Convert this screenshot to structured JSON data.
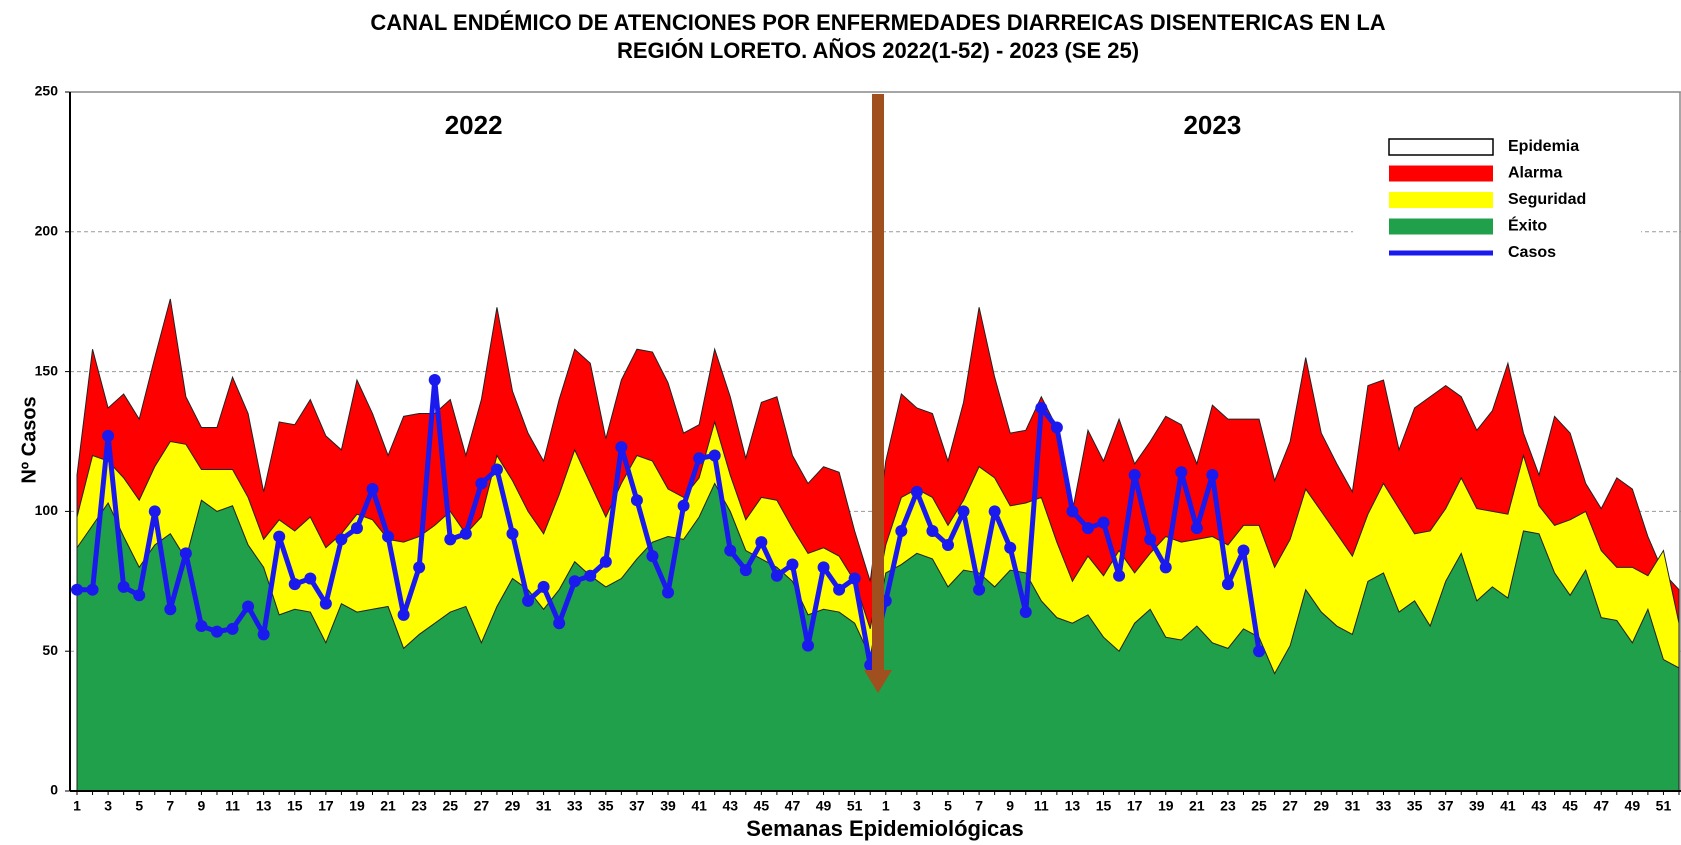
{
  "chart_data": {
    "type": "area",
    "title": [
      "CANAL ENDÉMICO DE ATENCIONES POR ENFERMEDADES DIARREICAS DISENTERICAS EN LA",
      "REGIÓN LORETO.  AÑOS 2022(1-52) - 2023 (SE 25)"
    ],
    "y_label": "Nº Casos",
    "x_label": "Semanas Epidemiológicas",
    "annotations": [
      "2022",
      "2023"
    ],
    "categories": [
      1,
      null,
      3,
      null,
      5,
      null,
      7,
      null,
      9,
      null,
      11,
      null,
      13,
      null,
      15,
      null,
      17,
      null,
      19,
      null,
      21,
      null,
      23,
      null,
      25,
      null,
      27,
      null,
      29,
      null,
      31,
      null,
      33,
      null,
      35,
      null,
      37,
      null,
      39,
      null,
      41,
      null,
      43,
      null,
      45,
      null,
      47,
      null,
      49,
      null,
      51,
      null,
      1,
      null,
      3,
      null,
      5,
      null,
      7,
      null,
      9,
      null,
      11,
      null,
      13,
      null,
      15,
      null,
      17,
      null,
      19,
      null,
      21,
      null,
      23,
      null,
      25,
      null,
      27,
      null,
      29,
      null,
      31,
      null,
      33,
      null,
      35,
      null,
      37,
      null,
      39,
      null,
      41,
      null,
      43,
      null,
      45,
      null,
      47,
      null,
      49,
      null,
      51,
      null
    ],
    "ylim": [
      0,
      250
    ],
    "yticks": [
      0,
      50,
      100,
      150,
      200,
      250
    ],
    "grid": true,
    "legend": "upper right",
    "series": [
      {
        "name": "Epidemia",
        "color": "#ffffff",
        "kind": "area",
        "values": [
          null,
          null,
          null,
          null,
          null,
          null,
          null,
          null,
          null,
          null,
          null,
          null,
          null,
          null,
          null,
          null,
          null,
          null,
          null,
          null,
          null,
          null,
          null,
          null,
          null,
          null,
          null,
          null,
          null,
          null,
          null,
          null,
          null,
          null,
          null,
          null,
          null,
          null,
          null,
          null,
          null,
          null,
          null,
          null,
          null,
          null,
          null,
          null,
          null,
          null,
          null,
          null,
          null,
          null,
          null,
          null,
          null,
          null,
          null,
          null,
          null,
          null,
          null,
          null,
          null,
          null,
          null,
          null,
          null,
          null,
          null,
          null,
          null,
          null,
          null,
          null,
          null,
          null,
          null,
          null,
          null,
          null,
          null,
          null,
          null,
          null,
          null,
          null,
          null,
          null,
          null,
          null,
          null,
          null,
          null,
          null,
          null,
          null,
          null,
          null,
          null,
          null,
          null,
          null
        ]
      },
      {
        "name": "Alarma",
        "color": "#ff0000",
        "kind": "area",
        "values": [
          113,
          158,
          137,
          142,
          133,
          155,
          176,
          141,
          130,
          130,
          148,
          135,
          107,
          132,
          131,
          140,
          127,
          122,
          147,
          135,
          120,
          134,
          135,
          135,
          140,
          120,
          140,
          173,
          143,
          128,
          118,
          140,
          158,
          153,
          126,
          147,
          158,
          157,
          146,
          128,
          131,
          158,
          141,
          119,
          139,
          141,
          120,
          110,
          116,
          114,
          93,
          75,
          118,
          142,
          137,
          135,
          118,
          139,
          173,
          148,
          128,
          129,
          141,
          130,
          100,
          129,
          118,
          133,
          117,
          125,
          134,
          131,
          117,
          138,
          133,
          133,
          133,
          111,
          125,
          155,
          128,
          117,
          107,
          145,
          147,
          122,
          137,
          141,
          145,
          141,
          129,
          136,
          153,
          128,
          113,
          134,
          128,
          110,
          101,
          112,
          108,
          91,
          78,
          72
        ]
      },
      {
        "name": "Seguridad",
        "color": "#ffff00",
        "kind": "area",
        "values": [
          98,
          120,
          118,
          112,
          104,
          116,
          125,
          124,
          115,
          115,
          115,
          105,
          90,
          97,
          93,
          98,
          87,
          92,
          99,
          97,
          90,
          89,
          91,
          95,
          100,
          92,
          98,
          120,
          111,
          100,
          92,
          106,
          122,
          110,
          98,
          110,
          120,
          118,
          108,
          105,
          112,
          132,
          113,
          97,
          105,
          104,
          94,
          85,
          87,
          84,
          75,
          58,
          88,
          105,
          108,
          105,
          95,
          104,
          116,
          112,
          102,
          103,
          105,
          89,
          75,
          84,
          77,
          86,
          78,
          85,
          91,
          89,
          90,
          91,
          88,
          95,
          95,
          80,
          90,
          108,
          100,
          92,
          84,
          99,
          110,
          101,
          92,
          93,
          101,
          112,
          101,
          100,
          99,
          120,
          102,
          95,
          97,
          100,
          86,
          80,
          80,
          77,
          86,
          60
        ]
      },
      {
        "name": "Éxito",
        "color": "#20a04a",
        "kind": "area",
        "values": [
          87,
          95,
          103,
          91,
          80,
          88,
          92,
          83,
          104,
          100,
          102,
          88,
          80,
          63,
          65,
          64,
          53,
          67,
          64,
          65,
          66,
          51,
          56,
          60,
          64,
          66,
          53,
          66,
          76,
          72,
          65,
          72,
          82,
          77,
          73,
          76,
          83,
          89,
          91,
          90,
          98,
          110,
          100,
          86,
          83,
          80,
          75,
          63,
          65,
          64,
          60,
          48,
          78,
          81,
          85,
          83,
          73,
          79,
          78,
          73,
          79,
          78,
          68,
          62,
          60,
          63,
          55,
          50,
          60,
          65,
          55,
          54,
          59,
          53,
          51,
          58,
          55,
          42,
          52,
          72,
          64,
          59,
          56,
          75,
          78,
          64,
          68,
          59,
          75,
          85,
          68,
          73,
          69,
          93,
          92,
          78,
          70,
          79,
          62,
          61,
          53,
          65,
          47,
          44
        ]
      },
      {
        "name": "Casos",
        "color": "#1a1aee",
        "kind": "line",
        "values": [
          72,
          72,
          127,
          73,
          70,
          100,
          65,
          85,
          59,
          57,
          58,
          66,
          56,
          91,
          74,
          76,
          67,
          90,
          94,
          108,
          91,
          63,
          80,
          147,
          90,
          92,
          110,
          115,
          92,
          68,
          73,
          60,
          75,
          77,
          82,
          123,
          104,
          84,
          71,
          102,
          119,
          120,
          86,
          79,
          89,
          77,
          81,
          52,
          80,
          72,
          76,
          45,
          68,
          93,
          107,
          93,
          88,
          100,
          72,
          100,
          87,
          64,
          137,
          130,
          100,
          94,
          96,
          77,
          113,
          90,
          80,
          114,
          94,
          113,
          74,
          86,
          50,
          null,
          null,
          null,
          null,
          null,
          null,
          null,
          null,
          null,
          null,
          null,
          null,
          null,
          null,
          null,
          null,
          null,
          null,
          null,
          null,
          null,
          null,
          null,
          null,
          null,
          null,
          null
        ]
      }
    ]
  }
}
